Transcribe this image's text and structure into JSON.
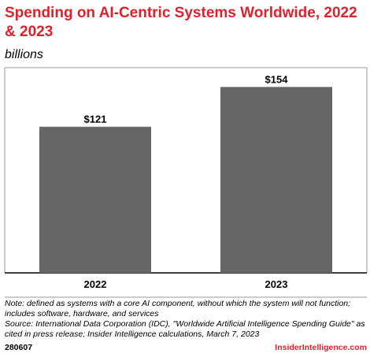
{
  "header": {
    "title": "Spending on AI-Centric Systems Worldwide, 2022 & 2023",
    "subtitle": "billions"
  },
  "chart_data": {
    "type": "bar",
    "categories": [
      "2022",
      "2023"
    ],
    "values": [
      121,
      154
    ],
    "value_labels": [
      "$121",
      "$154"
    ],
    "ylim": [
      0,
      170
    ],
    "grid": false,
    "legend": "none",
    "bar_color": "#666666"
  },
  "footer": {
    "note": "Note: defined as systems with a core AI component, without which the system will not function; includes software, hardware, and services",
    "source": "Source: International Data Corporation (IDC), \"Worldwide Artificial Intelligence Spending Guide\" as cited in press release; Insider Intelligence calculations, March 7, 2023",
    "code": "280607",
    "brand": "InsiderIntelligence.com"
  },
  "colors": {
    "accent": "#e0202b",
    "bar": "#666666"
  }
}
